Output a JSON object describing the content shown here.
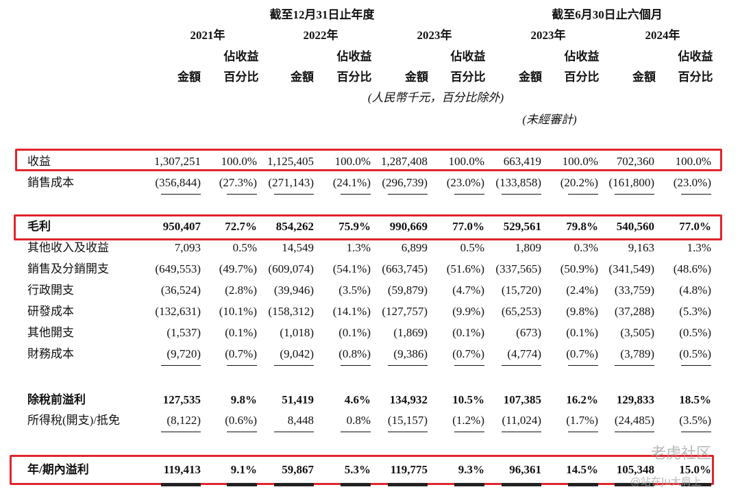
{
  "header": {
    "period_groups": [
      "截至12月31日止年度",
      "截至6月30日止六個月"
    ],
    "years": [
      "2021年",
      "2022年",
      "2023年",
      "2023年",
      "2024年"
    ],
    "amount_label": "金額",
    "pct_label": [
      "佔收益",
      "百分比"
    ],
    "currency_note": "(人民幣千元，百分比除外)",
    "audit_note": "(未經審計)"
  },
  "table": {
    "rows": [
      {
        "label": "收益",
        "cells": [
          "1,307,251",
          "100.0%",
          "1,125,405",
          "100.0%",
          "1,287,408",
          "100.0%",
          "663,419",
          "100.0%",
          "702,360",
          "100.0%"
        ]
      },
      {
        "label": "銷售成本",
        "cells": [
          "(356,844)",
          "(27.3%)",
          "(271,143)",
          "(24.1%)",
          "(296,739)",
          "(23.0%)",
          "(133,858)",
          "(20.2%)",
          "(161,800)",
          "(23.0%)"
        ]
      },
      {
        "label": "毛利",
        "cells": [
          "950,407",
          "72.7%",
          "854,262",
          "75.9%",
          "990,669",
          "77.0%",
          "529,561",
          "79.8%",
          "540,560",
          "77.0%"
        ]
      },
      {
        "label": "其他收入及收益",
        "cells": [
          "7,093",
          "0.5%",
          "14,549",
          "1.3%",
          "6,899",
          "0.5%",
          "1,809",
          "0.3%",
          "9,163",
          "1.3%"
        ]
      },
      {
        "label": "銷售及分銷開支",
        "cells": [
          "(649,553)",
          "(49.7%)",
          "(609,074)",
          "(54.1%)",
          "(663,745)",
          "(51.6%)",
          "(337,565)",
          "(50.9%)",
          "(341,549)",
          "(48.6%)"
        ]
      },
      {
        "label": "行政開支",
        "cells": [
          "(36,524)",
          "(2.8%)",
          "(39,946)",
          "(3.5%)",
          "(59,879)",
          "(4.7%)",
          "(15,720)",
          "(2.4%)",
          "(33,759)",
          "(4.8%)"
        ]
      },
      {
        "label": "研發成本",
        "cells": [
          "(132,631)",
          "(10.1%)",
          "(158,312)",
          "(14.1%)",
          "(127,757)",
          "(9.9%)",
          "(65,253)",
          "(9.8%)",
          "(37,288)",
          "(5.3%)"
        ]
      },
      {
        "label": "其他開支",
        "cells": [
          "(1,537)",
          "(0.1%)",
          "(1,018)",
          "(0.1%)",
          "(1,869)",
          "(0.1%)",
          "(673)",
          "(0.1%)",
          "(3,505)",
          "(0.5%)"
        ]
      },
      {
        "label": "財務成本",
        "cells": [
          "(9,720)",
          "(0.7%)",
          "(9,042)",
          "(0.8%)",
          "(9,386)",
          "(0.7%)",
          "(4,774)",
          "(0.7%)",
          "(3,789)",
          "(0.5%)"
        ]
      },
      {
        "label": "除稅前溢利",
        "cells": [
          "127,535",
          "9.8%",
          "51,419",
          "4.6%",
          "134,932",
          "10.5%",
          "107,385",
          "16.2%",
          "129,833",
          "18.5%"
        ]
      },
      {
        "label": "所得稅(開支)/抵免",
        "cells": [
          "(8,122)",
          "(0.6%)",
          "8,448",
          "0.8%",
          "(15,157)",
          "(1.2%)",
          "(11,024)",
          "(1.7%)",
          "(24,485)",
          "(3.5%)"
        ]
      },
      {
        "label": "年/期內溢利",
        "cells": [
          "119,413",
          "9.1%",
          "59,867",
          "5.3%",
          "119,775",
          "9.3%",
          "96,361",
          "14.5%",
          "105,348",
          "15.0%"
        ]
      }
    ]
  },
  "watermark": [
    "老虎社区",
    "@站在Ju大肩上"
  ]
}
